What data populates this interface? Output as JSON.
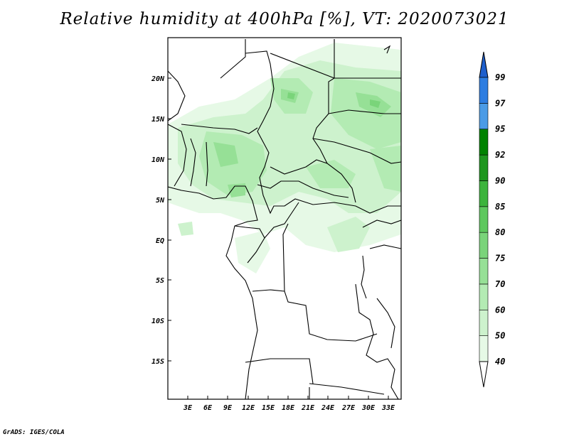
{
  "title": "Relative humidity at 400hPa [%], VT: 2020073021",
  "credit": "GrADS: IGES/COLA",
  "map": {
    "lat_labels": [
      "20N",
      "15N",
      "10N",
      "5N",
      "EQ",
      "5S",
      "10S",
      "15S"
    ],
    "lon_labels": [
      "3E",
      "6E",
      "9E",
      "12E",
      "15E",
      "18E",
      "21E",
      "24E",
      "27E",
      "30E",
      "33E"
    ]
  },
  "colorbar": {
    "levels": [
      "40",
      "50",
      "60",
      "70",
      "75",
      "80",
      "85",
      "90",
      "92",
      "95",
      "97",
      "99"
    ],
    "colors": [
      "#ffffff",
      "#e6f9e6",
      "#cdf2cd",
      "#b3ebb3",
      "#96e096",
      "#7ad47a",
      "#5ec85e",
      "#3cb43c",
      "#1e961e",
      "#008200",
      "#4b9be6",
      "#2d7de1",
      "#1e5fcc"
    ]
  }
}
